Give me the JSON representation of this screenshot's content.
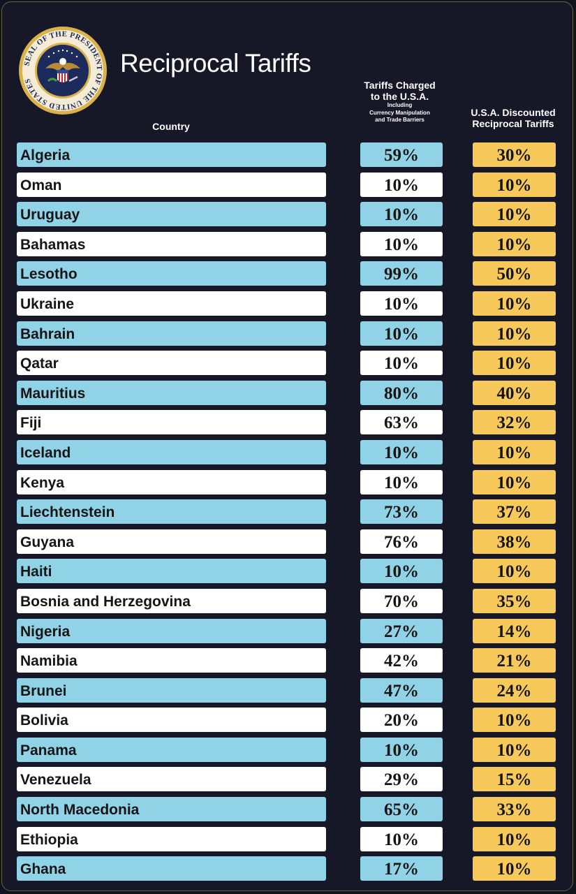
{
  "title": "Reciprocal Tariffs",
  "seal": {
    "icon": "presidential-seal-icon",
    "text": "SEAL OF THE PRESIDENT OF THE UNITED STATES"
  },
  "headers": {
    "country": "Country",
    "charged_line1": "Tariffs Charged",
    "charged_line2": "to the U.S.A.",
    "charged_sub1": "Including",
    "charged_sub2": "Currency Manipulation",
    "charged_sub3": "and Trade Barriers",
    "reciprocal_line1": "U.S.A. Discounted",
    "reciprocal_line2": "Reciprocal Tariffs"
  },
  "colors": {
    "background": "#161827",
    "row_blue": "#90d2e6",
    "row_white": "#ffffff",
    "reciprocal_yellow": "#f7c95b"
  },
  "rows": [
    {
      "country": "Algeria",
      "charged": "59%",
      "reciprocal": "30%"
    },
    {
      "country": "Oman",
      "charged": "10%",
      "reciprocal": "10%"
    },
    {
      "country": "Uruguay",
      "charged": "10%",
      "reciprocal": "10%"
    },
    {
      "country": "Bahamas",
      "charged": "10%",
      "reciprocal": "10%"
    },
    {
      "country": "Lesotho",
      "charged": "99%",
      "reciprocal": "50%"
    },
    {
      "country": "Ukraine",
      "charged": "10%",
      "reciprocal": "10%"
    },
    {
      "country": "Bahrain",
      "charged": "10%",
      "reciprocal": "10%"
    },
    {
      "country": "Qatar",
      "charged": "10%",
      "reciprocal": "10%"
    },
    {
      "country": "Mauritius",
      "charged": "80%",
      "reciprocal": "40%"
    },
    {
      "country": "Fiji",
      "charged": "63%",
      "reciprocal": "32%"
    },
    {
      "country": "Iceland",
      "charged": "10%",
      "reciprocal": "10%"
    },
    {
      "country": "Kenya",
      "charged": "10%",
      "reciprocal": "10%"
    },
    {
      "country": "Liechtenstein",
      "charged": "73%",
      "reciprocal": "37%"
    },
    {
      "country": "Guyana",
      "charged": "76%",
      "reciprocal": "38%"
    },
    {
      "country": "Haiti",
      "charged": "10%",
      "reciprocal": "10%"
    },
    {
      "country": "Bosnia and Herzegovina",
      "charged": "70%",
      "reciprocal": "35%"
    },
    {
      "country": "Nigeria",
      "charged": "27%",
      "reciprocal": "14%"
    },
    {
      "country": "Namibia",
      "charged": "42%",
      "reciprocal": "21%"
    },
    {
      "country": "Brunei",
      "charged": "47%",
      "reciprocal": "24%"
    },
    {
      "country": "Bolivia",
      "charged": "20%",
      "reciprocal": "10%"
    },
    {
      "country": "Panama",
      "charged": "10%",
      "reciprocal": "10%"
    },
    {
      "country": "Venezuela",
      "charged": "29%",
      "reciprocal": "15%"
    },
    {
      "country": "North Macedonia",
      "charged": "65%",
      "reciprocal": "33%"
    },
    {
      "country": "Ethiopia",
      "charged": "10%",
      "reciprocal": "10%"
    },
    {
      "country": "Ghana",
      "charged": "17%",
      "reciprocal": "10%"
    }
  ]
}
